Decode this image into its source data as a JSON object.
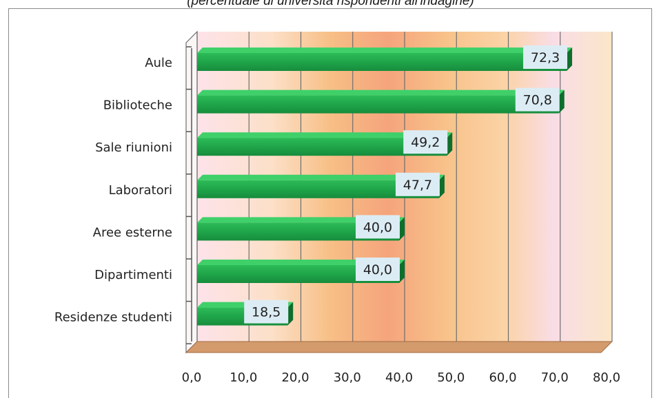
{
  "subtitle": "(percentuale di università rispondenti all'indagine)",
  "chart_data": {
    "type": "bar",
    "orientation": "horizontal",
    "categories": [
      "Aule",
      "Biblioteche",
      "Sale riunioni",
      "Laboratori",
      "Aree esterne",
      "Dipartimenti",
      "Residenze studenti"
    ],
    "values": [
      72.3,
      70.8,
      49.2,
      47.7,
      40.0,
      40.0,
      18.5
    ],
    "value_labels": [
      "72,3",
      "70,8",
      "49,2",
      "47,7",
      "40,0",
      "40,0",
      "18,5"
    ],
    "xlim": [
      0,
      80
    ],
    "ticks": [
      0,
      10,
      20,
      30,
      40,
      50,
      60,
      70,
      80
    ],
    "tick_labels": [
      "0,0",
      "10,0",
      "20,0",
      "30,0",
      "40,0",
      "50,0",
      "60,0",
      "70,0",
      "80,0"
    ],
    "grid": true,
    "three_d": true,
    "colors": {
      "bar": "#1fa54a",
      "bar_top": "#3fd06a",
      "bar_side": "#0e6e2c",
      "label_bg": "#dcecf4",
      "floor": "#d39a6c",
      "grid": "#6e6e6e"
    }
  }
}
